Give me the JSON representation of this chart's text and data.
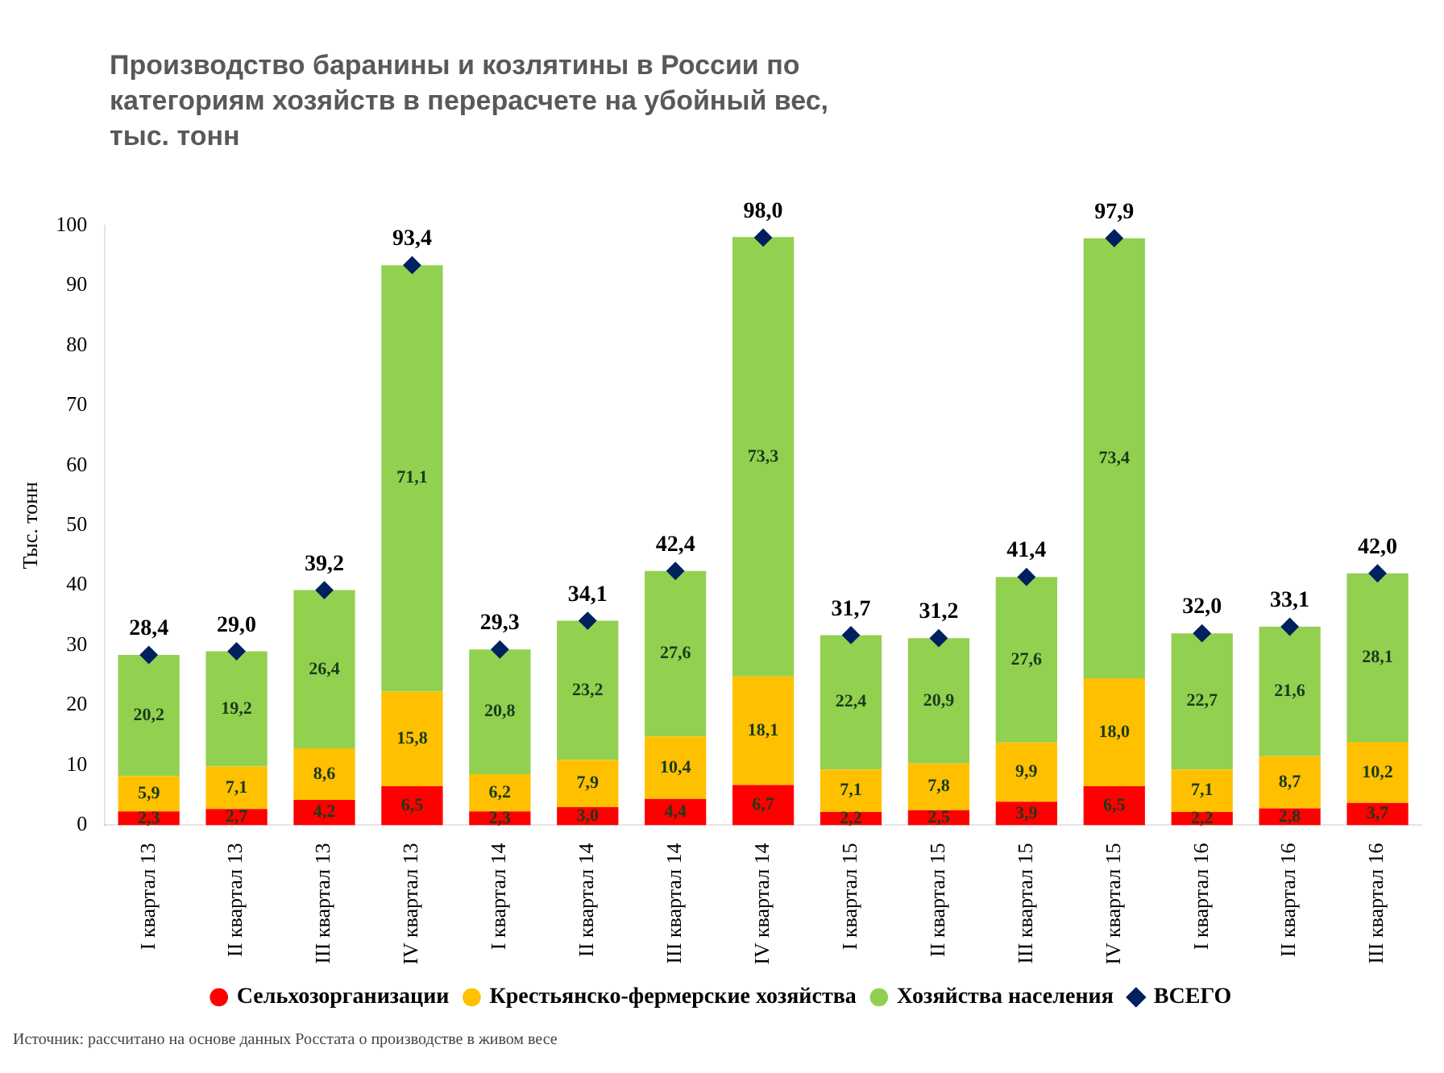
{
  "chart_data": {
    "type": "bar",
    "title": "Производство баранины и козлятины в России по категориям хозяйств в перерасчете на убойный вес, тыс. тонн",
    "ylabel": "Тыс. тонн",
    "categories": [
      "I квартал 13",
      "II квартал 13",
      "III квартал 13",
      "IV квартал 13",
      "I квартал 14",
      "II квартал 14",
      "III квартал 14",
      "IV квартал 14",
      "I квартал 15",
      "II квартал 15",
      "III квартал 15",
      "IV квартал 15",
      "I квартал 16",
      "II квартал 16",
      "III квартал 16"
    ],
    "series": [
      {
        "name": "Сельхозорганизации",
        "color": "#ff0000",
        "values": [
          2.3,
          2.7,
          4.2,
          6.5,
          2.3,
          3.0,
          4.4,
          6.7,
          2.2,
          2.5,
          3.9,
          6.5,
          2.2,
          2.8,
          3.7
        ],
        "value_labels": [
          "2,3",
          "2,7",
          "4,2",
          "6,5",
          "2,3",
          "3,0",
          "4,4",
          "6,7",
          "2,2",
          "2,5",
          "3,9",
          "6,5",
          "2,2",
          "2,8",
          "3,7"
        ]
      },
      {
        "name": "Крестьянско-фермерские хозяйства",
        "color": "#ffc000",
        "values": [
          5.9,
          7.1,
          8.6,
          15.8,
          6.2,
          7.9,
          10.4,
          18.1,
          7.1,
          7.8,
          9.9,
          18.0,
          7.1,
          8.7,
          10.2
        ],
        "value_labels": [
          "5,9",
          "7,1",
          "8,6",
          "15,8",
          "6,2",
          "7,9",
          "10,4",
          "18,1",
          "7,1",
          "7,8",
          "9,9",
          "18,0",
          "7,1",
          "8,7",
          "10,2"
        ]
      },
      {
        "name": "Хозяйства населения",
        "color": "#92d050",
        "values": [
          20.2,
          19.2,
          26.4,
          71.1,
          20.8,
          23.2,
          27.6,
          73.3,
          22.4,
          20.9,
          27.6,
          73.4,
          22.7,
          21.6,
          28.1
        ],
        "value_labels": [
          "20,2",
          "19,2",
          "26,4",
          "71,1",
          "20,8",
          "23,2",
          "27,6",
          "73,3",
          "22,4",
          "20,9",
          "27,6",
          "73,4",
          "22,7",
          "21,6",
          "28,1"
        ]
      },
      {
        "name": "ВСЕГО",
        "type": "scatter",
        "marker": "diamond",
        "color": "#002060",
        "values": [
          28.4,
          29.0,
          39.2,
          93.4,
          29.3,
          34.1,
          42.4,
          98.0,
          31.7,
          31.2,
          41.4,
          97.9,
          32.0,
          33.1,
          42.0
        ],
        "value_labels": [
          "28,4",
          "29,0",
          "39,2",
          "93,4",
          "29,3",
          "34,1",
          "42,4",
          "98,0",
          "31,7",
          "31,2",
          "41,4",
          "97,9",
          "32,0",
          "33,1",
          "42,0"
        ]
      }
    ],
    "stacked": true,
    "ylim": [
      0,
      100
    ],
    "yticks": [
      0,
      10,
      20,
      30,
      40,
      50,
      60,
      70,
      80,
      90,
      100
    ],
    "grid": false,
    "legend": "bottom",
    "annotations": [
      "Источник: рассчитано на основе данных Росстата о производстве в живом весе"
    ]
  }
}
